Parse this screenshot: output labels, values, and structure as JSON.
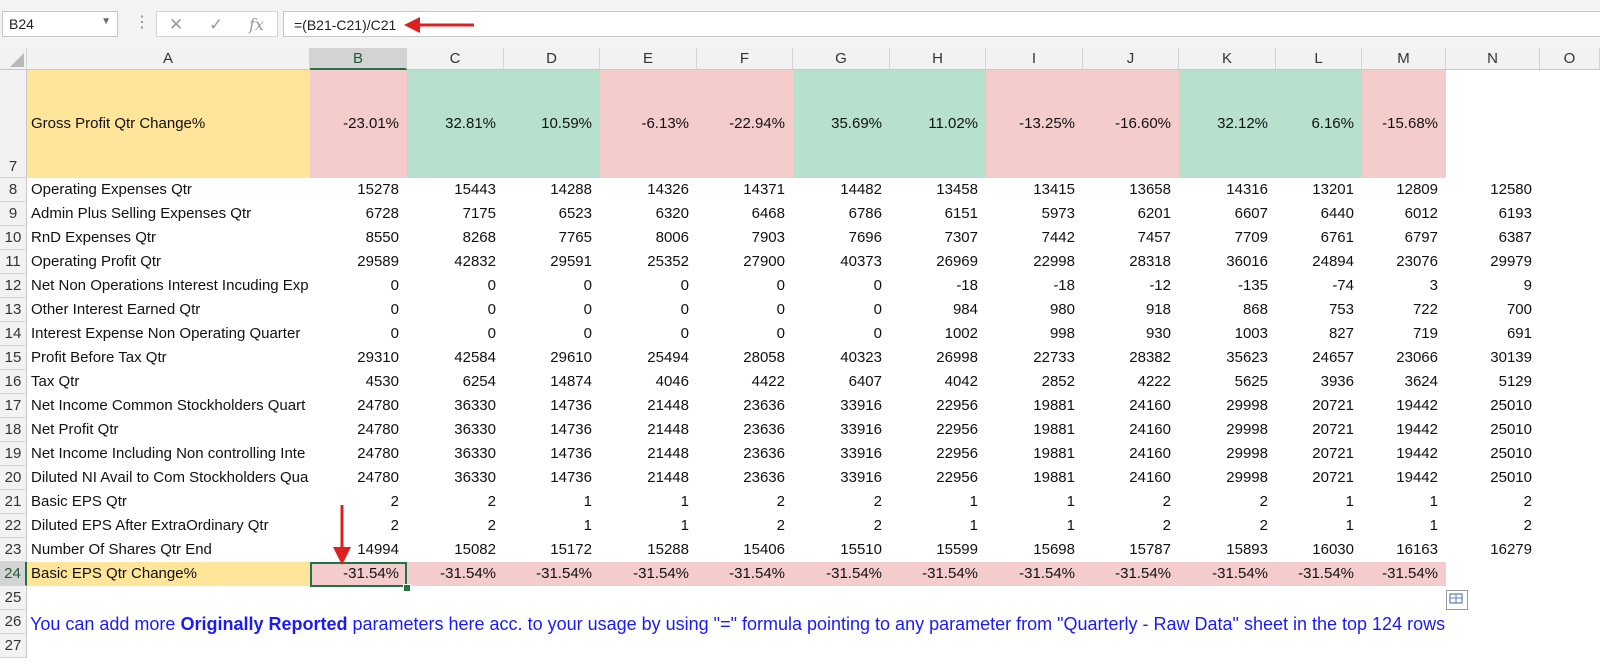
{
  "formula_bar": {
    "name_box": "B24",
    "cancel_icon": "✕",
    "enter_icon": "✓",
    "fx_icon": "fx",
    "formula": "=(B21-C21)/C21"
  },
  "columns": [
    "A",
    "B",
    "C",
    "D",
    "E",
    "F",
    "G",
    "H",
    "I",
    "J",
    "K",
    "L",
    "M",
    "N",
    "O"
  ],
  "rows": [
    {
      "num": "7",
      "label": "Gross Profit Qtr Change%",
      "values": [
        "-23.01%",
        "32.81%",
        "10.59%",
        "-6.13%",
        "-22.94%",
        "35.69%",
        "11.02%",
        "-13.25%",
        "-16.60%",
        "32.12%",
        "6.16%",
        "-15.68%",
        ""
      ]
    },
    {
      "num": "8",
      "label": "Operating Expenses Qtr",
      "values": [
        "15278",
        "15443",
        "14288",
        "14326",
        "14371",
        "14482",
        "13458",
        "13415",
        "13658",
        "14316",
        "13201",
        "12809",
        "12580"
      ]
    },
    {
      "num": "9",
      "label": "Admin Plus Selling Expenses Qtr",
      "values": [
        "6728",
        "7175",
        "6523",
        "6320",
        "6468",
        "6786",
        "6151",
        "5973",
        "6201",
        "6607",
        "6440",
        "6012",
        "6193"
      ]
    },
    {
      "num": "10",
      "label": "RnD Expenses Qtr",
      "values": [
        "8550",
        "8268",
        "7765",
        "8006",
        "7903",
        "7696",
        "7307",
        "7442",
        "7457",
        "7709",
        "6761",
        "6797",
        "6387"
      ]
    },
    {
      "num": "11",
      "label": "Operating Profit Qtr",
      "values": [
        "29589",
        "42832",
        "29591",
        "25352",
        "27900",
        "40373",
        "26969",
        "22998",
        "28318",
        "36016",
        "24894",
        "23076",
        "29979"
      ]
    },
    {
      "num": "12",
      "label": "Net Non Operations Interest Incuding Exp",
      "values": [
        "0",
        "0",
        "0",
        "0",
        "0",
        "0",
        "-18",
        "-18",
        "-12",
        "-135",
        "-74",
        "3",
        "9"
      ]
    },
    {
      "num": "13",
      "label": "Other Interest Earned Qtr",
      "values": [
        "0",
        "0",
        "0",
        "0",
        "0",
        "0",
        "984",
        "980",
        "918",
        "868",
        "753",
        "722",
        "700"
      ]
    },
    {
      "num": "14",
      "label": "Interest Expense Non Operating Quarter",
      "values": [
        "0",
        "0",
        "0",
        "0",
        "0",
        "0",
        "1002",
        "998",
        "930",
        "1003",
        "827",
        "719",
        "691"
      ]
    },
    {
      "num": "15",
      "label": "Profit Before Tax Qtr",
      "values": [
        "29310",
        "42584",
        "29610",
        "25494",
        "28058",
        "40323",
        "26998",
        "22733",
        "28382",
        "35623",
        "24657",
        "23066",
        "30139"
      ]
    },
    {
      "num": "16",
      "label": "Tax Qtr",
      "values": [
        "4530",
        "6254",
        "14874",
        "4046",
        "4422",
        "6407",
        "4042",
        "2852",
        "4222",
        "5625",
        "3936",
        "3624",
        "5129"
      ]
    },
    {
      "num": "17",
      "label": "Net Income Common Stockholders Quart",
      "values": [
        "24780",
        "36330",
        "14736",
        "21448",
        "23636",
        "33916",
        "22956",
        "19881",
        "24160",
        "29998",
        "20721",
        "19442",
        "25010"
      ]
    },
    {
      "num": "18",
      "label": "Net Profit Qtr",
      "values": [
        "24780",
        "36330",
        "14736",
        "21448",
        "23636",
        "33916",
        "22956",
        "19881",
        "24160",
        "29998",
        "20721",
        "19442",
        "25010"
      ]
    },
    {
      "num": "19",
      "label": "Net Income Including Non controlling Inte",
      "values": [
        "24780",
        "36330",
        "14736",
        "21448",
        "23636",
        "33916",
        "22956",
        "19881",
        "24160",
        "29998",
        "20721",
        "19442",
        "25010"
      ]
    },
    {
      "num": "20",
      "label": "Diluted NI Avail to Com Stockholders Qua",
      "values": [
        "24780",
        "36330",
        "14736",
        "21448",
        "23636",
        "33916",
        "22956",
        "19881",
        "24160",
        "29998",
        "20721",
        "19442",
        "25010"
      ]
    },
    {
      "num": "21",
      "label": "Basic EPS Qtr",
      "values": [
        "2",
        "2",
        "1",
        "1",
        "2",
        "2",
        "1",
        "1",
        "2",
        "2",
        "1",
        "1",
        "2"
      ]
    },
    {
      "num": "22",
      "label": "Diluted EPS After ExtraOrdinary Qtr",
      "values": [
        "2",
        "2",
        "1",
        "1",
        "2",
        "2",
        "1",
        "1",
        "2",
        "2",
        "1",
        "1",
        "2"
      ]
    },
    {
      "num": "23",
      "label": "Number Of Shares Qtr End",
      "values": [
        "14994",
        "15082",
        "15172",
        "15288",
        "15406",
        "15510",
        "15599",
        "15698",
        "15787",
        "15893",
        "16030",
        "16163",
        "16279"
      ]
    },
    {
      "num": "24",
      "label": "Basic EPS Qtr Change%",
      "values": [
        "-31.54%",
        "-31.54%",
        "-31.54%",
        "-31.54%",
        "-31.54%",
        "-31.54%",
        "-31.54%",
        "-31.54%",
        "-31.54%",
        "-31.54%",
        "-31.54%",
        "-31.54%",
        ""
      ]
    },
    {
      "num": "25",
      "label": "",
      "values": [
        "",
        "",
        "",
        "",
        "",
        "",
        "",
        "",
        "",
        "",
        "",
        "",
        ""
      ]
    },
    {
      "num": "26",
      "label": "",
      "values": [
        "",
        "",
        "",
        "",
        "",
        "",
        "",
        "",
        "",
        "",
        "",
        "",
        ""
      ]
    },
    {
      "num": "27",
      "label": "",
      "values": [
        "",
        "",
        "",
        "",
        "",
        "",
        "",
        "",
        "",
        "",
        "",
        "",
        ""
      ]
    }
  ],
  "note": {
    "part1": "You can add more ",
    "bold": "Originally Reported",
    "part2": " parameters here acc. to your usage by using \"=\" formula pointing to any parameter from \"Quarterly - Raw Data\" sheet in the top 124 rows"
  },
  "colors": {
    "negative_fill": "#f4cccc",
    "positive_fill": "#b7e1cd",
    "label_fill": "#ffe599",
    "selection": "#217346",
    "arrow": "#e02020",
    "note_text": "#1a1aff"
  }
}
